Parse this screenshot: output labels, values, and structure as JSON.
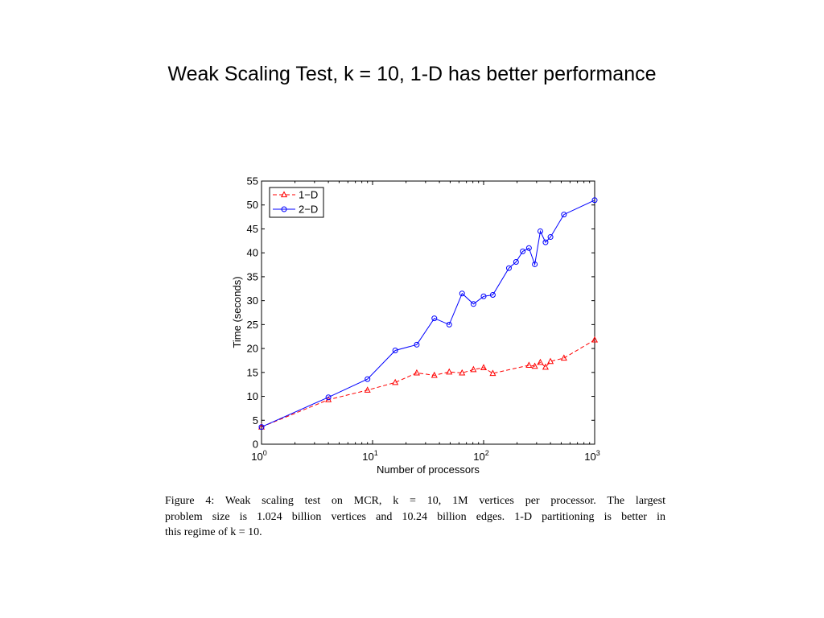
{
  "slide": {
    "title": "Weak Scaling Test, k = 10, 1-D has better performance"
  },
  "caption": {
    "lines": [
      "Figure 4: Weak scaling test on MCR, k = 10, 1M vertices per processor. The largest",
      "problem size is 1.024 billion vertices and 10.24 billion edges. 1-D partitioning is better in",
      "this regime of k = 10."
    ]
  },
  "chart_data": {
    "type": "line",
    "title": "",
    "xlabel": "Number of processors",
    "ylabel": "Time (seconds)",
    "x_scale": "log",
    "xlim": [
      1,
      1000
    ],
    "ylim": [
      0,
      55
    ],
    "x_ticks": [
      {
        "value": 1,
        "base": "10",
        "exp": "0"
      },
      {
        "value": 10,
        "base": "10",
        "exp": "1"
      },
      {
        "value": 100,
        "base": "10",
        "exp": "2"
      },
      {
        "value": 1000,
        "base": "10",
        "exp": "3"
      }
    ],
    "y_ticks": [
      0,
      5,
      10,
      15,
      20,
      25,
      30,
      35,
      40,
      45,
      50,
      55
    ],
    "grid": false,
    "legend_position": "top-left",
    "series": [
      {
        "name": "1−D",
        "color": "#ff0000",
        "line_style": "dashed",
        "marker": "triangle",
        "x": [
          1,
          4,
          9,
          16,
          25,
          36,
          49,
          64,
          81,
          100,
          121,
          256,
          289,
          324,
          361,
          400,
          529,
          1000
        ],
        "y": [
          3.6,
          9.3,
          11.3,
          12.9,
          14.9,
          14.4,
          15.1,
          14.9,
          15.6,
          16.0,
          14.8,
          16.5,
          16.3,
          17.1,
          16.1,
          17.3,
          18.0,
          21.8
        ]
      },
      {
        "name": "2−D",
        "color": "#0000ff",
        "line_style": "solid",
        "marker": "circle",
        "x": [
          1,
          4,
          9,
          16,
          25,
          36,
          49,
          64,
          81,
          100,
          121,
          169,
          196,
          225,
          256,
          289,
          324,
          361,
          400,
          529,
          1000
        ],
        "y": [
          3.6,
          9.8,
          13.6,
          19.6,
          20.8,
          26.3,
          25.0,
          31.5,
          29.3,
          30.9,
          31.2,
          36.8,
          38.1,
          40.3,
          41.0,
          37.6,
          44.5,
          42.2,
          43.3,
          48.0,
          51.0
        ]
      }
    ]
  }
}
